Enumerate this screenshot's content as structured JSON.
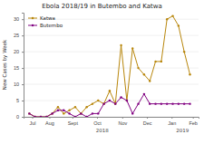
{
  "chart_data": {
    "type": "line",
    "title": "Ebola 2018/19 in Butembo and Katwa",
    "y_label": "New Cases by Week",
    "x": [
      0,
      1,
      2,
      3,
      4,
      5,
      6,
      7,
      8,
      9,
      10,
      11,
      12,
      13,
      14,
      15,
      16,
      17,
      18,
      19,
      20,
      21,
      22,
      23,
      24,
      25,
      26,
      27,
      28
    ],
    "xlim": [
      -1,
      29.5
    ],
    "xticks": [
      {
        "value": 0.5,
        "label": "Jul"
      },
      {
        "value": 3.5,
        "label": "Aug"
      },
      {
        "value": 7.5,
        "label": "Sept"
      },
      {
        "value": 11.8,
        "label": "Oct"
      },
      {
        "value": 16.2,
        "label": "Nov"
      },
      {
        "value": 20.5,
        "label": "Dec"
      },
      {
        "value": 24.8,
        "label": "Jan"
      },
      {
        "value": 28.5,
        "label": "Feb"
      }
    ],
    "annotations": [
      {
        "x": 12.7,
        "text": "2018"
      },
      {
        "x": 26.7,
        "text": "2019"
      }
    ],
    "ylim": [
      0,
      32
    ],
    "yticks": [
      0,
      5,
      10,
      15,
      20,
      25,
      30
    ],
    "grid": true,
    "legend": "upper left",
    "series": [
      {
        "name": "Katwa",
        "color": "#b8860b",
        "marker": "circle",
        "values": [
          1,
          0,
          0,
          0,
          1,
          3,
          1,
          2,
          3,
          1,
          3,
          4,
          5,
          4,
          8,
          4,
          22,
          5,
          21,
          15,
          13,
          11,
          17,
          17,
          30,
          31,
          28,
          20,
          13
        ]
      },
      {
        "name": "Butembo",
        "color": "#800080",
        "marker": "circle",
        "values": [
          1,
          0,
          0,
          0,
          1,
          2,
          2,
          1,
          0,
          1,
          0,
          1,
          1,
          4,
          5,
          4,
          6,
          5,
          1,
          4,
          7,
          4,
          4,
          4,
          4,
          4,
          4,
          4,
          4
        ]
      }
    ]
  }
}
